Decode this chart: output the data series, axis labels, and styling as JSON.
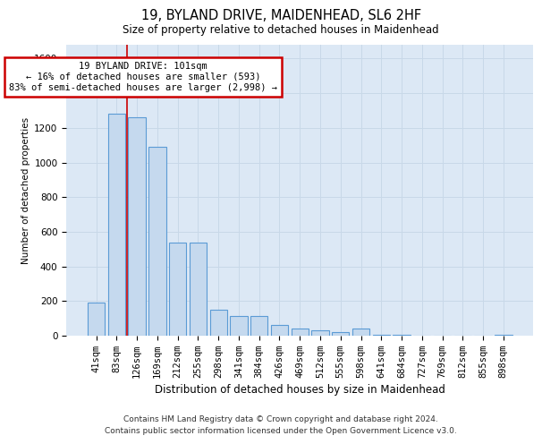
{
  "title1": "19, BYLAND DRIVE, MAIDENHEAD, SL6 2HF",
  "title2": "Size of property relative to detached houses in Maidenhead",
  "xlabel": "Distribution of detached houses by size in Maidenhead",
  "ylabel": "Number of detached properties",
  "categories": [
    "41sqm",
    "83sqm",
    "126sqm",
    "169sqm",
    "212sqm",
    "255sqm",
    "298sqm",
    "341sqm",
    "384sqm",
    "426sqm",
    "469sqm",
    "512sqm",
    "555sqm",
    "598sqm",
    "641sqm",
    "684sqm",
    "727sqm",
    "769sqm",
    "812sqm",
    "855sqm",
    "898sqm"
  ],
  "values": [
    190,
    1280,
    1260,
    1090,
    540,
    540,
    150,
    115,
    115,
    60,
    40,
    30,
    20,
    40,
    5,
    3,
    2,
    1,
    1,
    1,
    5
  ],
  "bar_color": "#c5d9ee",
  "bar_edge_color": "#5b9bd5",
  "grid_color": "#c8d8e8",
  "background_color": "#dce8f5",
  "annotation_text_line1": "19 BYLAND DRIVE: 101sqm",
  "annotation_text_line2": "← 16% of detached houses are smaller (593)",
  "annotation_text_line3": "83% of semi-detached houses are larger (2,998) →",
  "annotation_box_color": "#ffffff",
  "annotation_box_edge_color": "#cc0000",
  "vline_color": "#cc0000",
  "vline_x": 1.5,
  "ylim": [
    0,
    1680
  ],
  "yticks": [
    0,
    200,
    400,
    600,
    800,
    1000,
    1200,
    1400,
    1600
  ],
  "footer1": "Contains HM Land Registry data © Crown copyright and database right 2024.",
  "footer2": "Contains public sector information licensed under the Open Government Licence v3.0.",
  "title1_fontsize": 10.5,
  "title2_fontsize": 8.5,
  "xlabel_fontsize": 8.5,
  "ylabel_fontsize": 7.5,
  "tick_fontsize": 7.5,
  "annotation_fontsize": 7.5,
  "footer_fontsize": 6.5
}
